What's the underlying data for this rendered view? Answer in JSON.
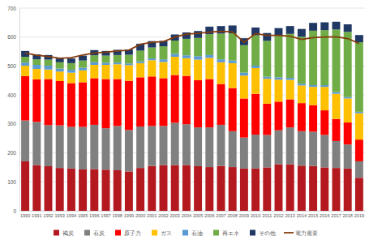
{
  "chart_data": {
    "type": "bar",
    "stacked": true,
    "grid": true,
    "legend": "bottom",
    "categories": [
      "1990",
      "1991",
      "1992",
      "1993",
      "1994",
      "1995",
      "1996",
      "1997",
      "1998",
      "1999",
      "2000",
      "2001",
      "2002",
      "2003",
      "2004",
      "2005",
      "2006",
      "2007",
      "2008",
      "2009",
      "2010",
      "2011",
      "2012",
      "2013",
      "2014",
      "2015",
      "2016",
      "2017",
      "2018",
      "2019"
    ],
    "ylim": [
      0,
      700
    ],
    "yticks": [
      0,
      100,
      200,
      300,
      400,
      500,
      600,
      700
    ],
    "series": [
      {
        "name": "褐炭",
        "color": "#b3191e",
        "values": [
          171,
          158,
          154,
          148,
          146,
          143,
          144,
          142,
          140,
          136,
          148,
          155,
          158,
          158,
          158,
          154,
          151,
          155,
          151,
          146,
          146,
          150,
          161,
          161,
          156,
          155,
          150,
          148,
          146,
          114
        ]
      },
      {
        "name": "石炭",
        "color": "#808080",
        "values": [
          141,
          149,
          142,
          147,
          144,
          147,
          153,
          143,
          153,
          143,
          143,
          138,
          135,
          146,
          141,
          134,
          137,
          142,
          124,
          107,
          117,
          112,
          117,
          127,
          119,
          118,
          112,
          93,
          83,
          57
        ]
      },
      {
        "name": "原子力",
        "color": "#ff0000",
        "values": [
          153,
          147,
          159,
          153,
          151,
          154,
          161,
          170,
          162,
          170,
          170,
          171,
          165,
          165,
          167,
          163,
          167,
          141,
          149,
          135,
          141,
          108,
          99,
          97,
          97,
          92,
          85,
          76,
          76,
          75
        ]
      },
      {
        "name": "ガス",
        "color": "#ffc000",
        "values": [
          36,
          36,
          33,
          33,
          36,
          41,
          46,
          49,
          51,
          54,
          49,
          56,
          56,
          63,
          61,
          71,
          73,
          75,
          86,
          79,
          89,
          86,
          76,
          67,
          61,
          63,
          81,
          87,
          83,
          91
        ]
      },
      {
        "name": "石油",
        "color": "#5b9bd5",
        "values": [
          11,
          14,
          13,
          10,
          10,
          9,
          9,
          7,
          6,
          6,
          6,
          6,
          9,
          10,
          10,
          12,
          10,
          10,
          9,
          10,
          8,
          7,
          8,
          7,
          6,
          6,
          6,
          6,
          5,
          5
        ]
      },
      {
        "name": "再エネ",
        "color": "#70ad47",
        "values": [
          20,
          19,
          21,
          22,
          23,
          25,
          24,
          25,
          26,
          30,
          37,
          38,
          45,
          46,
          57,
          63,
          72,
          89,
          94,
          95,
          105,
          124,
          143,
          152,
          162,
          188,
          190,
          216,
          225,
          240
        ]
      },
      {
        "name": "その他",
        "color": "#203864",
        "values": [
          20,
          17,
          16,
          13,
          16,
          17,
          18,
          16,
          18,
          18,
          24,
          22,
          19,
          21,
          22,
          24,
          26,
          26,
          27,
          24,
          27,
          27,
          27,
          27,
          27,
          27,
          27,
          27,
          26,
          25
        ]
      },
      {
        "name": "電力需要",
        "color": "#843c0c",
        "type": "line",
        "values": [
          545,
          537,
          533,
          527,
          529,
          538,
          545,
          548,
          552,
          555,
          575,
          582,
          584,
          600,
          610,
          613,
          617,
          620,
          618,
          582,
          612,
          606,
          606,
          603,
          592,
          598,
          600,
          601,
          595,
          578
        ]
      }
    ]
  }
}
